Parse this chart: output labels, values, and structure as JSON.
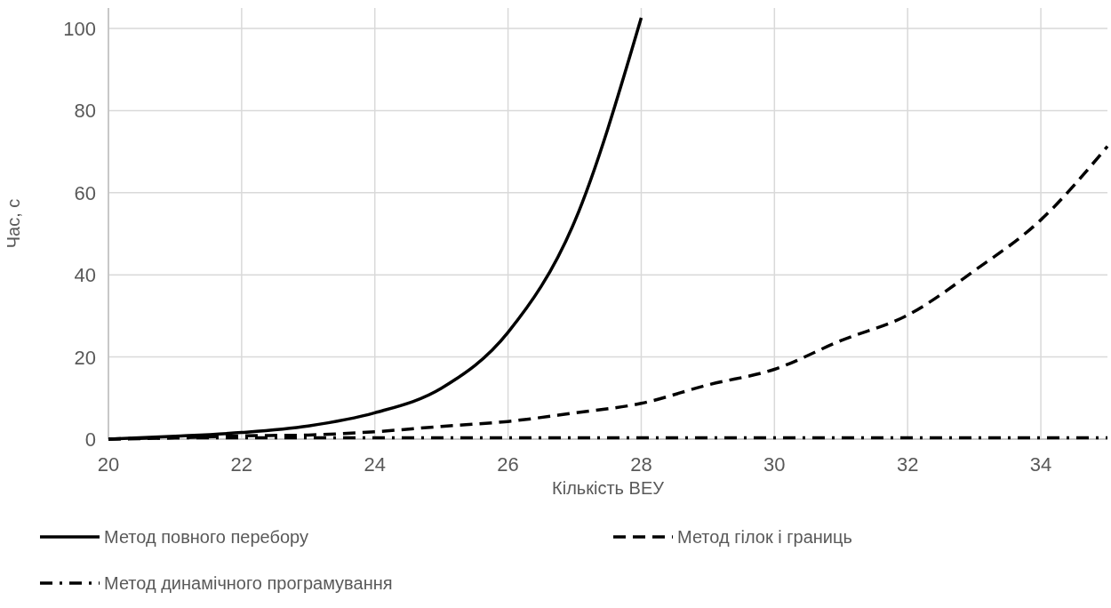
{
  "chart_data": {
    "type": "line",
    "xlabel": "Кількість ВЕУ",
    "ylabel": "Час, с",
    "x": [
      20,
      21,
      22,
      23,
      24,
      25,
      26,
      27,
      28,
      29,
      30,
      31,
      32,
      33,
      34,
      35
    ],
    "series": [
      {
        "name": "Метод повного перебору",
        "color": "#000000",
        "line_style": "solid",
        "x": [
          20,
          21,
          22,
          23,
          24,
          25,
          26,
          27,
          28
        ],
        "values": [
          0,
          0.7,
          1.6,
          3.2,
          6.4,
          12.4,
          26,
          53,
          102.6
        ]
      },
      {
        "name": "Метод гілок і границь",
        "color": "#000000",
        "line_style": "dashed",
        "values": [
          0,
          0.3,
          0.8,
          1.0,
          1.8,
          3.1,
          4.3,
          6.4,
          8.7,
          13.2,
          17,
          24,
          30.2,
          41,
          53.4,
          71.3
        ]
      },
      {
        "name": "Метод динамічного програмування",
        "color": "#000000",
        "line_style": "dashdot",
        "values": [
          0,
          0.3,
          0.3,
          0.3,
          0.3,
          0.3,
          0.3,
          0.3,
          0.3,
          0.3,
          0.3,
          0.3,
          0.3,
          0.3,
          0.3,
          0.3
        ]
      }
    ],
    "xlim": [
      20,
      35
    ],
    "xticks": [
      20,
      22,
      24,
      26,
      28,
      30,
      32,
      34
    ],
    "ylim": [
      0,
      105
    ],
    "yticks": [
      0,
      20,
      40,
      60,
      80,
      100
    ],
    "grid": true,
    "legend": "bottom",
    "marker": "none"
  }
}
